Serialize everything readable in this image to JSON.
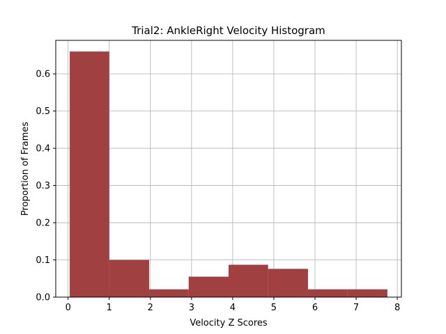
{
  "chart_data": {
    "type": "bar",
    "title": "Trial2: AnkleRight Velocity Histogram",
    "xlabel": "Velocity Z Scores",
    "ylabel": "Proportion of Frames",
    "xlim": [
      -0.3,
      8.1
    ],
    "ylim": [
      0,
      0.69
    ],
    "x_ticks": [
      0,
      1,
      2,
      3,
      4,
      5,
      6,
      7,
      8
    ],
    "y_ticks": [
      0.0,
      0.1,
      0.2,
      0.3,
      0.4,
      0.5,
      0.6
    ],
    "y_tick_labels": [
      "0.0",
      "0.1",
      "0.2",
      "0.3",
      "0.4",
      "0.5",
      "0.6"
    ],
    "grid": true,
    "bar_color": "#a04040",
    "bins": [
      {
        "x0": 0.04,
        "x1": 1.0,
        "value": 0.66
      },
      {
        "x0": 1.0,
        "x1": 1.97,
        "value": 0.1
      },
      {
        "x0": 1.97,
        "x1": 2.93,
        "value": 0.021
      },
      {
        "x0": 2.93,
        "x1": 3.9,
        "value": 0.055
      },
      {
        "x0": 3.9,
        "x1": 4.86,
        "value": 0.087
      },
      {
        "x0": 4.86,
        "x1": 5.83,
        "value": 0.076
      },
      {
        "x0": 5.83,
        "x1": 6.79,
        "value": 0.021
      },
      {
        "x0": 6.79,
        "x1": 7.76,
        "value": 0.021
      }
    ]
  }
}
